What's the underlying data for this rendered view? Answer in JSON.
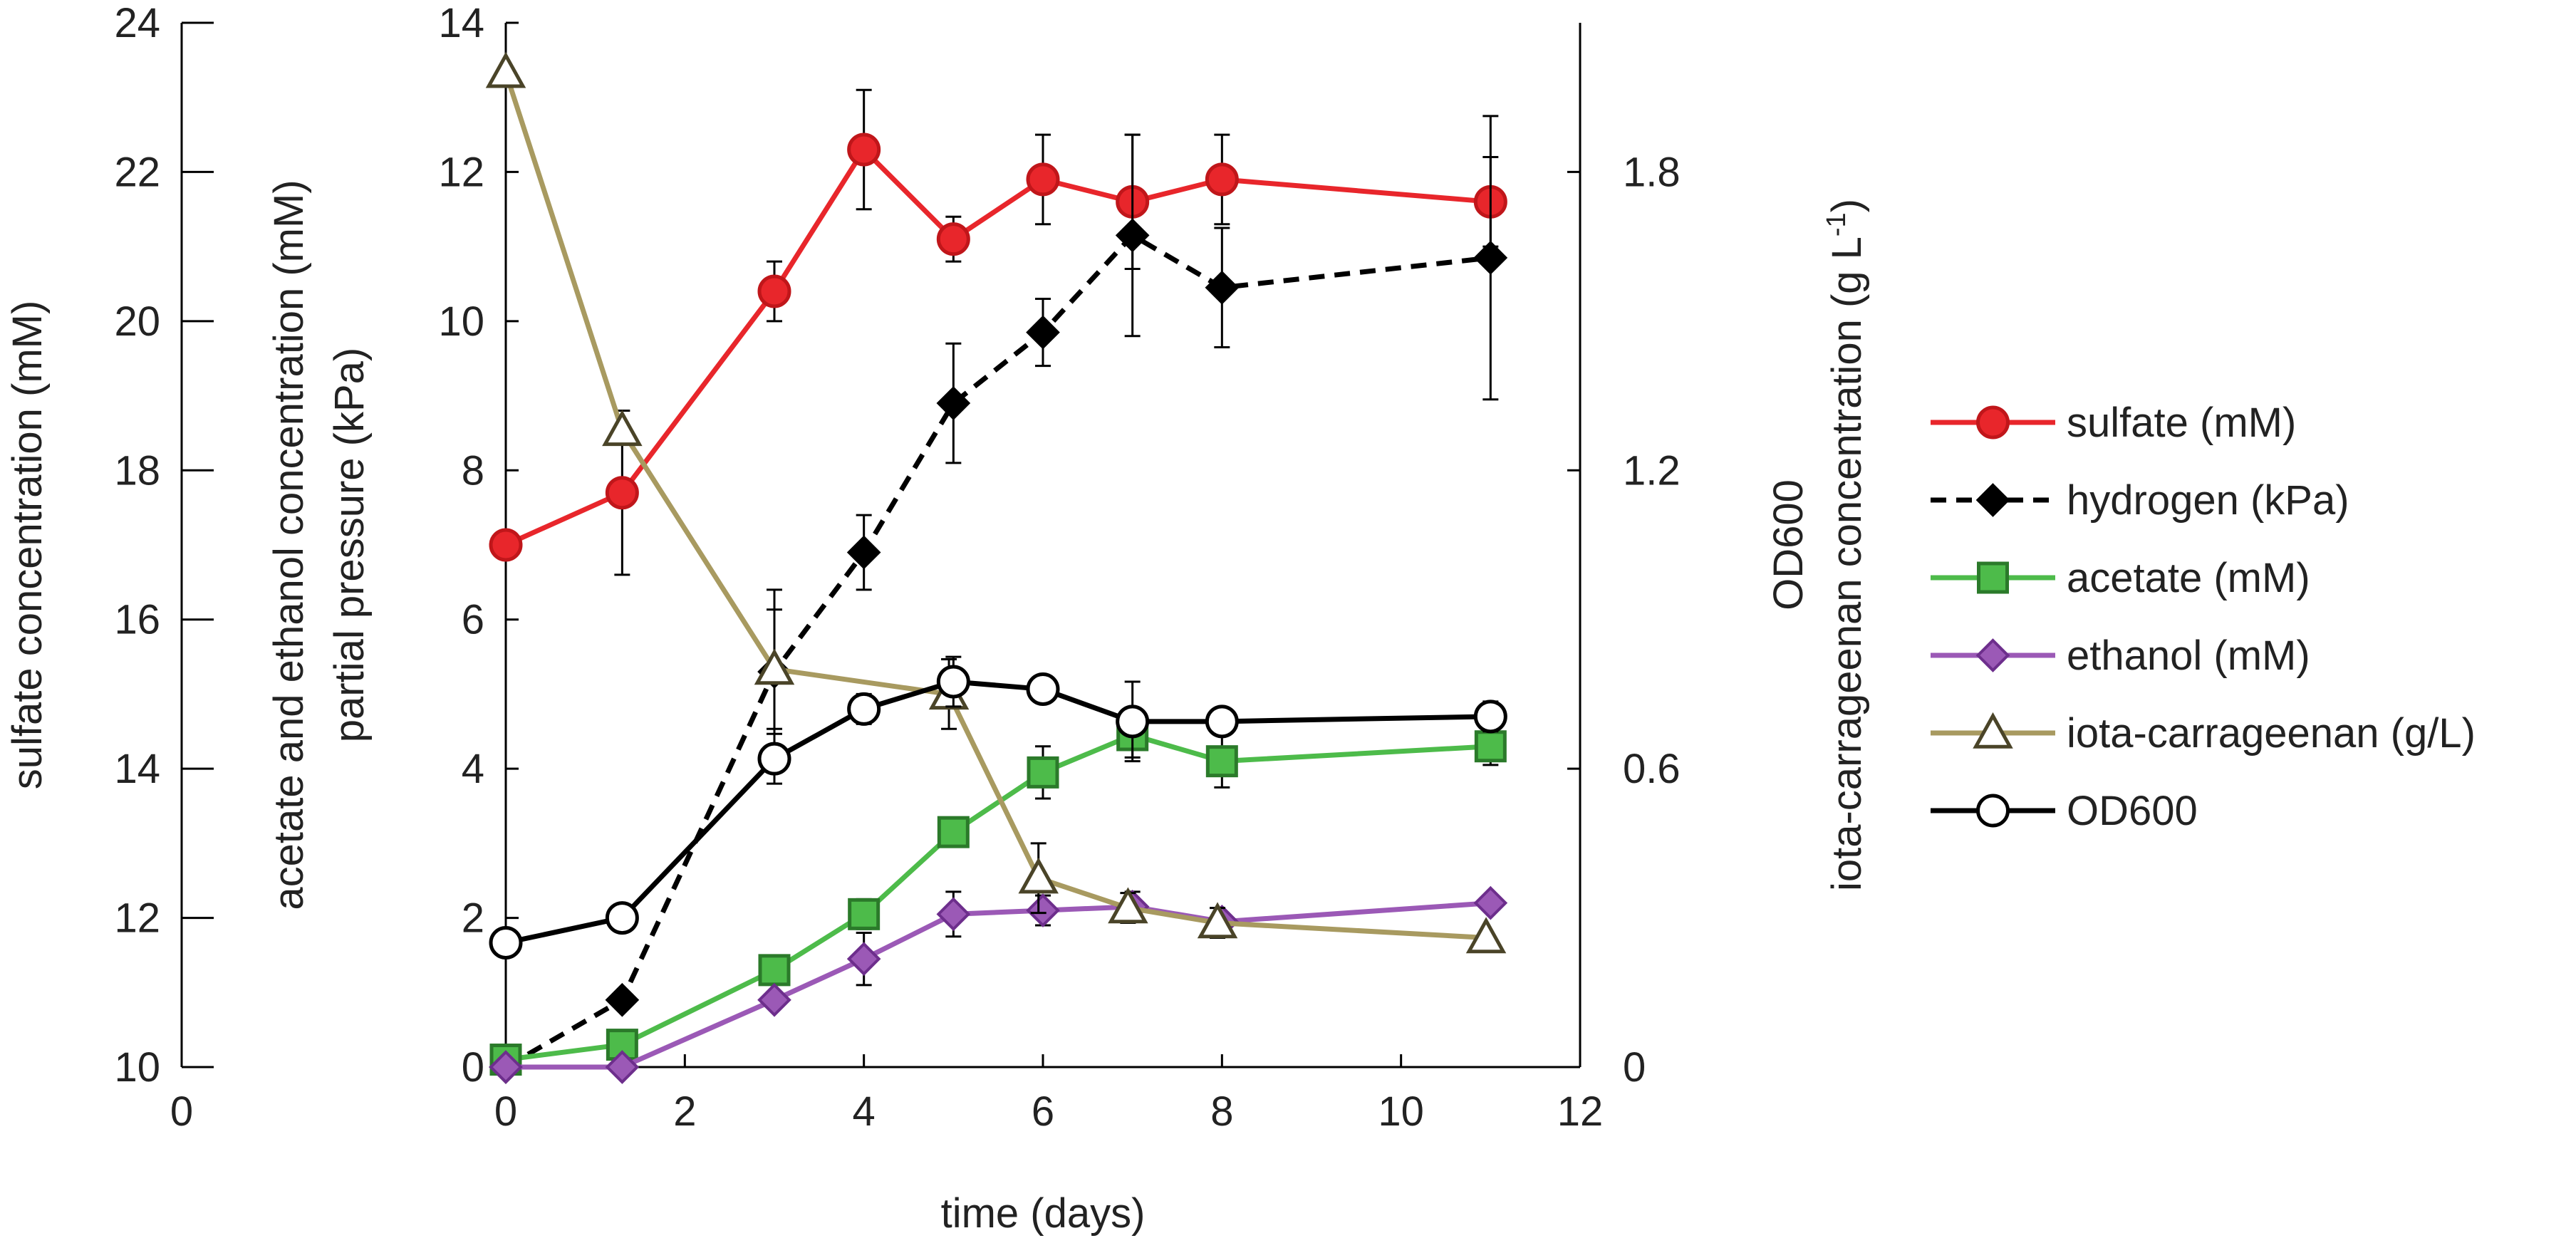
{
  "chart_data": {
    "type": "line",
    "title": "",
    "xlabel": "time (days)",
    "xlim": [
      0,
      12
    ],
    "x_ticks": [
      "0",
      "2",
      "4",
      "6",
      "8",
      "10",
      "12"
    ],
    "far_left_x_tick": "0",
    "axes": {
      "sulfate": {
        "label": "sulfate concentration (mM)",
        "range": [
          10,
          24
        ],
        "ticks": [
          "10",
          "12",
          "14",
          "16",
          "18",
          "20",
          "22",
          "24"
        ]
      },
      "main": {
        "label_line1": "acetate and ethanol concentration (mM)",
        "label_line2": "partial pressure (kPa)",
        "range": [
          0,
          14
        ],
        "ticks": [
          "0",
          "2",
          "4",
          "6",
          "8",
          "10",
          "12",
          "14"
        ]
      },
      "right": {
        "label_line1": "OD600",
        "label_line2": "iota-carrageenan concentration (g L",
        "label_sup": "-1",
        "label_end": ")",
        "range": [
          0,
          2.1
        ],
        "ticks": [
          "0",
          "0.6",
          "1.2",
          "1.8"
        ]
      }
    },
    "series": [
      {
        "name": "sulfate (mM)",
        "axis": "sulfate",
        "color": "#e8262b",
        "marker": "circle",
        "marker_fill": "#e8262b",
        "marker_stroke": "#c0161a",
        "dashed": false,
        "x": [
          0,
          1.3,
          3,
          4,
          5,
          6,
          7,
          8,
          11
        ],
        "y": [
          17.0,
          17.7,
          20.4,
          22.3,
          21.1,
          21.9,
          21.6,
          21.9,
          21.6
        ],
        "err": [
          0,
          1.1,
          0.4,
          0.8,
          0.3,
          0.6,
          0.9,
          0.6,
          0.6
        ]
      },
      {
        "name": "hydrogen (kPa)",
        "axis": "main",
        "color": "#000000",
        "marker": "diamond",
        "marker_fill": "#000000",
        "marker_stroke": "#000000",
        "dashed": true,
        "x": [
          0,
          1.3,
          3,
          4,
          5,
          6,
          7,
          8,
          11
        ],
        "y": [
          0,
          0.9,
          5.3,
          6.9,
          8.9,
          9.85,
          11.15,
          10.45,
          10.85
        ],
        "err": [
          0,
          0,
          1.1,
          0.5,
          0.8,
          0.45,
          1.35,
          0.8,
          1.9
        ]
      },
      {
        "name": "acetate (mM)",
        "axis": "main",
        "color": "#4dbb4a",
        "marker": "square",
        "marker_fill": "#4dbb4a",
        "marker_stroke": "#2b7a2a",
        "dashed": false,
        "x": [
          0,
          1.3,
          3,
          4,
          5,
          6,
          7,
          8,
          11
        ],
        "y": [
          0.1,
          0.3,
          1.3,
          2.05,
          3.15,
          3.95,
          4.45,
          4.1,
          4.3
        ],
        "err": [
          0,
          0,
          0,
          0.2,
          0,
          0.35,
          0.3,
          0.35,
          0.25
        ]
      },
      {
        "name": "ethanol (mM)",
        "axis": "main",
        "color": "#9b59b6",
        "marker": "diamond",
        "marker_fill": "#9b59b6",
        "marker_stroke": "#6d2e8c",
        "dashed": false,
        "x": [
          0,
          1.3,
          3,
          4,
          5,
          6,
          7,
          8,
          11
        ],
        "y": [
          0,
          0,
          0.9,
          1.45,
          2.05,
          2.1,
          2.15,
          1.95,
          2.2
        ],
        "err": [
          0,
          0,
          0,
          0.35,
          0.3,
          0.2,
          0.2,
          0,
          0
        ]
      },
      {
        "name": "iota-carrageenan (g/L)",
        "axis": "right",
        "color": "#a89a60",
        "marker": "triangle",
        "marker_fill": "#ffffff",
        "marker_stroke": "#4a4428",
        "dashed": false,
        "x": [
          0,
          1.3,
          3,
          4.95,
          5.95,
          6.95,
          7.95,
          10.95
        ],
        "y": [
          2.0,
          1.28,
          0.8,
          0.75,
          0.38,
          0.32,
          0.29,
          0.26
        ],
        "err": [
          0,
          0,
          0.12,
          0.07,
          0.07,
          0.03,
          0.03,
          0
        ]
      },
      {
        "name": "OD600",
        "axis": "right",
        "color": "#000000",
        "marker": "circle",
        "marker_fill": "#ffffff",
        "marker_stroke": "#000000",
        "dashed": false,
        "x": [
          0,
          1.3,
          3,
          4,
          5,
          6,
          7,
          8,
          11
        ],
        "y": [
          0.25,
          0.3,
          0.62,
          0.72,
          0.775,
          0.76,
          0.695,
          0.695,
          0.705
        ],
        "err": [
          0,
          0,
          0.05,
          0.03,
          0.05,
          0,
          0.08,
          0,
          0.03
        ]
      }
    ]
  }
}
